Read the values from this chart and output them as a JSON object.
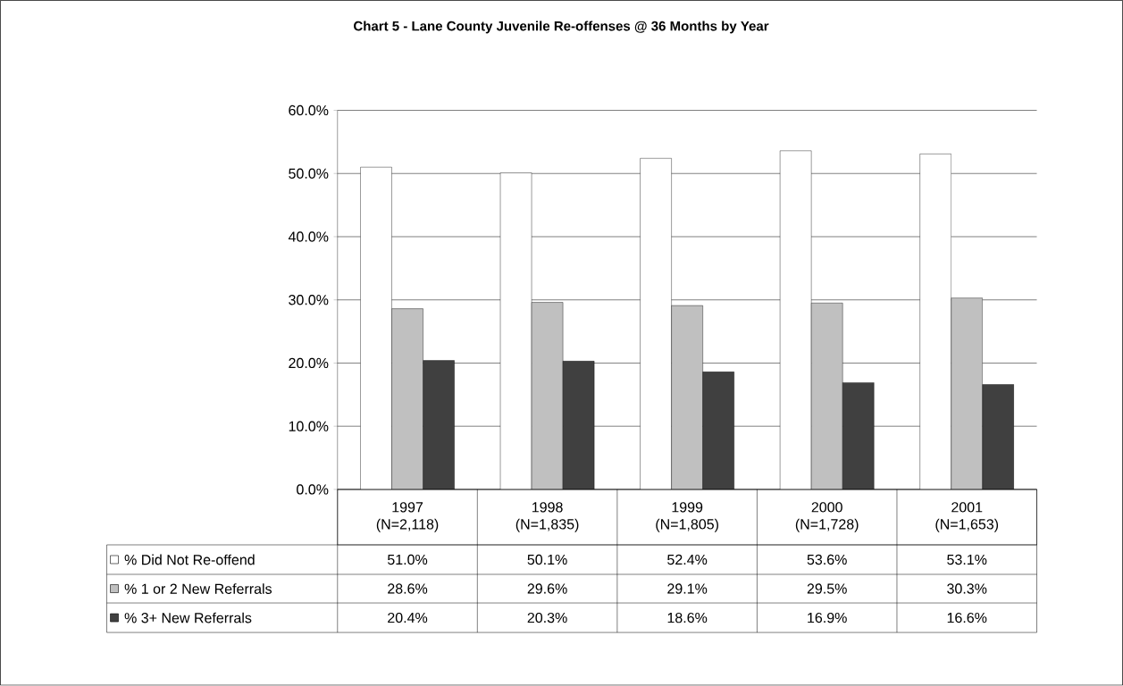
{
  "chart_data": {
    "type": "bar",
    "title": "Chart 5 - Lane County Juvenile Re-offenses @ 36 Months by Year",
    "categories": [
      "1997 (N=2,118)",
      "1998 (N=1,835)",
      "1999 (N=1,805)",
      "2000 (N=1,728)",
      "2001 (N=1,653)"
    ],
    "series": [
      {
        "name": "% Did Not Re-offend",
        "color": "#ffffff",
        "values": [
          51.0,
          50.1,
          52.4,
          53.6,
          53.1
        ],
        "value_labels": [
          "51.0%",
          "50.1%",
          "52.4%",
          "53.6%",
          "53.1%"
        ]
      },
      {
        "name": "% 1 or 2 New Referrals",
        "color": "#c0c0c0",
        "values": [
          28.6,
          29.6,
          29.1,
          29.5,
          30.3
        ],
        "value_labels": [
          "28.6%",
          "29.6%",
          "29.1%",
          "29.5%",
          "30.3%"
        ]
      },
      {
        "name": "% 3+ New Referrals",
        "color": "#404040",
        "values": [
          20.4,
          20.3,
          18.6,
          16.9,
          16.6
        ],
        "value_labels": [
          "20.4%",
          "20.3%",
          "18.6%",
          "16.9%",
          "16.6%"
        ]
      }
    ],
    "ylim": [
      0,
      60
    ],
    "yticks": [
      {
        "value": 0,
        "label": "0.0%"
      },
      {
        "value": 10,
        "label": "10.0%"
      },
      {
        "value": 20,
        "label": "20.0%"
      },
      {
        "value": 30,
        "label": "30.0%"
      },
      {
        "value": 40,
        "label": "40.0%"
      },
      {
        "value": 50,
        "label": "50.0%"
      },
      {
        "value": 60,
        "label": "60.0%"
      }
    ],
    "grid": "y",
    "legend": "bottom left"
  }
}
